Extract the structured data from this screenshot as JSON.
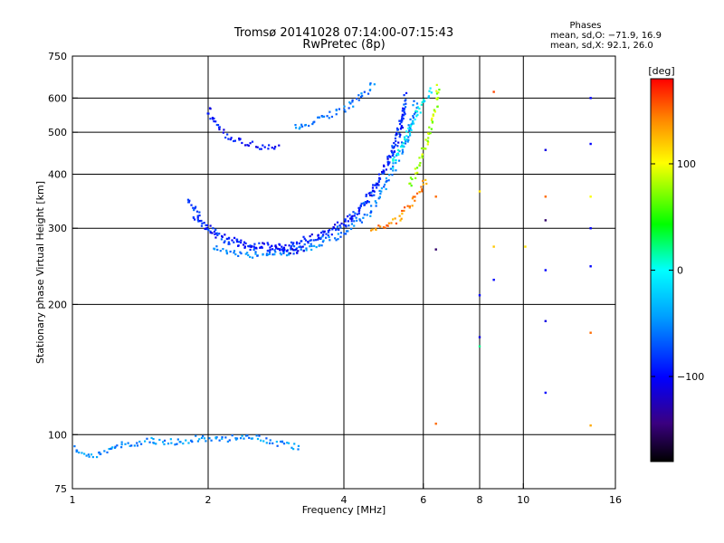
{
  "chart_data": {
    "type": "scatter",
    "title": "Tromsø 20141028 07:14:00-07:15:43",
    "subtitle": "RwPretec (8p)",
    "xlabel": "Frequency [MHz]",
    "ylabel": "Stationary phase Virtual Height [km]",
    "xscale": "log",
    "yscale": "log",
    "xlim": [
      1,
      16
    ],
    "ylim": [
      75,
      750
    ],
    "grid": true,
    "x_ticks": [
      1,
      2,
      4,
      6,
      8,
      10,
      16
    ],
    "x_tick_labels": [
      "1",
      "2",
      "4",
      "6",
      "8",
      "10",
      "16"
    ],
    "y_ticks": [
      75,
      100,
      200,
      300,
      400,
      500,
      600,
      750
    ],
    "y_tick_labels": [
      "75",
      "100",
      "200",
      "300",
      "400",
      "500",
      "600",
      "750"
    ],
    "stats": {
      "heading": "Phases",
      "line_o": "mean, sd,O: −71.9, 16.9",
      "line_x": "mean, sd,X:  92.1, 26.0"
    },
    "colorbar": {
      "label": "[deg]",
      "range": [
        -180,
        180
      ],
      "ticks": [
        100,
        0,
        -100
      ],
      "tick_labels": [
        "100",
        "0",
        "−100"
      ]
    },
    "traces": [
      {
        "name": "",
        "phase_deg": -80,
        "points": [
          [
            1.8,
            355
          ],
          [
            1.95,
            305
          ],
          [
            2.2,
            280
          ],
          [
            2.6,
            268
          ],
          [
            3.0,
            270
          ],
          [
            3.5,
            282
          ],
          [
            4.0,
            305
          ],
          [
            4.5,
            345
          ],
          [
            5.0,
            420
          ],
          [
            5.3,
            510
          ],
          [
            5.5,
            620
          ]
        ]
      },
      {
        "name": "",
        "phase_deg": -95,
        "points": [
          [
            1.85,
            320
          ],
          [
            2.1,
            290
          ],
          [
            2.5,
            272
          ],
          [
            3.0,
            275
          ],
          [
            3.6,
            290
          ],
          [
            4.2,
            320
          ],
          [
            4.8,
            385
          ],
          [
            5.2,
            470
          ],
          [
            5.5,
            570
          ]
        ]
      },
      {
        "name": "",
        "phase_deg": -55,
        "points": [
          [
            2.05,
            270
          ],
          [
            2.4,
            260
          ],
          [
            2.9,
            262
          ],
          [
            3.4,
            272
          ],
          [
            4.0,
            292
          ],
          [
            4.6,
            330
          ],
          [
            5.1,
            400
          ],
          [
            5.5,
            480
          ],
          [
            5.8,
            590
          ]
        ]
      },
      {
        "name": "",
        "phase_deg": -110,
        "points": [
          [
            2.75,
            272
          ],
          [
            2.9,
            268
          ],
          [
            3.1,
            266
          ],
          [
            3.3,
            268
          ]
        ]
      },
      {
        "name": "",
        "phase_deg": 140,
        "points": [
          [
            4.6,
            295
          ],
          [
            5.0,
            305
          ],
          [
            5.4,
            322
          ],
          [
            5.8,
            352
          ],
          [
            6.1,
            392
          ]
        ]
      },
      {
        "name": "",
        "phase_deg": -10,
        "points": [
          [
            5.1,
            420
          ],
          [
            5.4,
            470
          ],
          [
            5.7,
            530
          ],
          [
            6.0,
            590
          ],
          [
            6.3,
            630
          ]
        ]
      },
      {
        "name": "",
        "phase_deg": 80,
        "points": [
          [
            5.6,
            380
          ],
          [
            5.9,
            430
          ],
          [
            6.2,
            500
          ],
          [
            6.4,
            570
          ],
          [
            6.5,
            640
          ]
        ]
      },
      {
        "name": "",
        "phase_deg": -95,
        "points": [
          [
            2.0,
            570
          ],
          [
            2.1,
            510
          ],
          [
            2.3,
            480
          ],
          [
            2.6,
            465
          ],
          [
            2.9,
            460
          ]
        ]
      },
      {
        "name": "",
        "phase_deg": -60,
        "points": [
          [
            3.1,
            510
          ],
          [
            3.5,
            535
          ],
          [
            4.0,
            565
          ],
          [
            4.5,
            620
          ],
          [
            4.7,
            650
          ]
        ]
      },
      {
        "name": "",
        "phase_deg": -50,
        "points": [
          [
            1.0,
            93
          ],
          [
            1.1,
            89
          ],
          [
            1.3,
            95
          ],
          [
            1.5,
            97
          ],
          [
            1.7,
            96
          ],
          [
            1.9,
            98
          ],
          [
            2.1,
            97
          ],
          [
            2.4,
            99
          ],
          [
            2.7,
            97
          ],
          [
            3.2,
            93
          ]
        ]
      }
    ],
    "scatter_points": [
      {
        "x": 6.4,
        "y": 355,
        "phase_deg": 150
      },
      {
        "x": 6.4,
        "y": 268,
        "phase_deg": -150
      },
      {
        "x": 6.4,
        "y": 106,
        "phase_deg": 150
      },
      {
        "x": 8.0,
        "y": 365,
        "phase_deg": 110
      },
      {
        "x": 8.0,
        "y": 210,
        "phase_deg": -100
      },
      {
        "x": 8.0,
        "y": 168,
        "phase_deg": -110
      },
      {
        "x": 8.0,
        "y": 160,
        "phase_deg": 20
      },
      {
        "x": 8.6,
        "y": 620,
        "phase_deg": 160
      },
      {
        "x": 8.6,
        "y": 272,
        "phase_deg": 120
      },
      {
        "x": 8.6,
        "y": 228,
        "phase_deg": -100
      },
      {
        "x": 10.1,
        "y": 272,
        "phase_deg": 110
      },
      {
        "x": 11.2,
        "y": 455,
        "phase_deg": -110
      },
      {
        "x": 11.2,
        "y": 355,
        "phase_deg": 150
      },
      {
        "x": 11.2,
        "y": 313,
        "phase_deg": -150
      },
      {
        "x": 11.2,
        "y": 240,
        "phase_deg": -100
      },
      {
        "x": 11.2,
        "y": 183,
        "phase_deg": -110
      },
      {
        "x": 11.2,
        "y": 125,
        "phase_deg": -100
      },
      {
        "x": 14.1,
        "y": 600,
        "phase_deg": -100
      },
      {
        "x": 14.1,
        "y": 470,
        "phase_deg": -100
      },
      {
        "x": 14.1,
        "y": 355,
        "phase_deg": 100
      },
      {
        "x": 14.1,
        "y": 300,
        "phase_deg": -100
      },
      {
        "x": 14.1,
        "y": 245,
        "phase_deg": -100
      },
      {
        "x": 14.1,
        "y": 172,
        "phase_deg": 150
      },
      {
        "x": 14.1,
        "y": 105,
        "phase_deg": 130
      }
    ]
  }
}
